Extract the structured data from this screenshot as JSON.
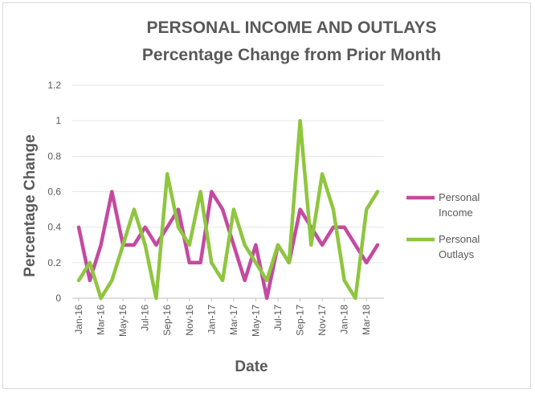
{
  "chart_data": {
    "type": "line",
    "title": "PERSONAL INCOME AND OUTLAYS",
    "subtitle": "Percentage Change from Prior Month",
    "xlabel": "Date",
    "ylabel": "Percentage Change",
    "ylim": [
      0,
      1.2
    ],
    "yticks": [
      "0",
      "0.2",
      "0.4",
      "0.6",
      "0.8",
      "1",
      "1.2"
    ],
    "grid": true,
    "legend": "right",
    "x": [
      "Jan-16",
      "Feb-16",
      "Mar-16",
      "Apr-16",
      "May-16",
      "Jun-16",
      "Jul-16",
      "Aug-16",
      "Sep-16",
      "Oct-16",
      "Nov-16",
      "Dec-16",
      "Jan-17",
      "Feb-17",
      "Mar-17",
      "Apr-17",
      "May-17",
      "Jun-17",
      "Jul-17",
      "Aug-17",
      "Sep-17",
      "Oct-17",
      "Nov-17",
      "Dec-17",
      "Jan-18",
      "Feb-18",
      "Mar-18",
      "Apr-18"
    ],
    "xtick_labels": [
      "Jan-16",
      "Mar-16",
      "May-16",
      "Jul-16",
      "Sep-16",
      "Nov-16",
      "Jan-17",
      "Mar-17",
      "May-17",
      "Jul-17",
      "Sep-17",
      "Nov-17",
      "Jan-18",
      "Mar-18"
    ],
    "series": [
      {
        "name": "Personal Income",
        "color": "#c44aa0",
        "values": [
          0.4,
          0.1,
          0.3,
          0.6,
          0.3,
          0.3,
          0.4,
          0.3,
          0.4,
          0.5,
          0.2,
          0.2,
          0.6,
          0.5,
          0.3,
          0.1,
          0.3,
          0.0,
          0.3,
          0.2,
          0.5,
          0.4,
          0.3,
          0.4,
          0.4,
          0.3,
          0.2,
          0.3
        ]
      },
      {
        "name": "Personal Outlays",
        "color": "#8ec63f",
        "values": [
          0.1,
          0.2,
          0.0,
          0.1,
          0.3,
          0.5,
          0.3,
          0.0,
          0.7,
          0.4,
          0.3,
          0.6,
          0.2,
          0.1,
          0.5,
          0.3,
          0.2,
          0.1,
          0.3,
          0.2,
          1.0,
          0.3,
          0.7,
          0.5,
          0.1,
          0.0,
          0.5,
          0.6
        ]
      }
    ]
  }
}
